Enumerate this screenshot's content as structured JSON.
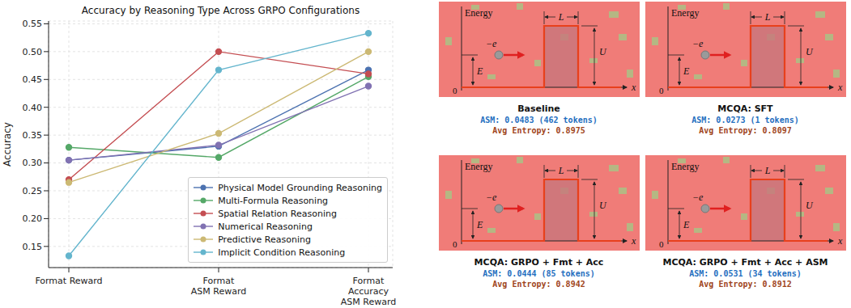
{
  "chart_data": {
    "type": "line",
    "title": "Accuracy by Reasoning Type Across GRPO Configurations",
    "y_label": "Accuracy",
    "categories": [
      "Format Reward",
      "Format\nASM Reward",
      "Format\nAccuracy\nASM Reward"
    ],
    "series": [
      {
        "name": "Physical Model Grounding Reasoning",
        "color": "#4c72b0",
        "values": [
          0.305,
          0.33,
          0.467
        ]
      },
      {
        "name": "Multi-Formula Reasoning",
        "color": "#55a868",
        "values": [
          0.328,
          0.31,
          0.455
        ]
      },
      {
        "name": "Spatial Relation Reasoning",
        "color": "#c44e52",
        "values": [
          0.27,
          0.5,
          0.46
        ]
      },
      {
        "name": "Numerical Reasoning",
        "color": "#8172b2",
        "values": [
          0.305,
          0.332,
          0.438
        ]
      },
      {
        "name": "Predictive Reasoning",
        "color": "#ccb974",
        "values": [
          0.265,
          0.353,
          0.5
        ]
      },
      {
        "name": "Implicit Condition Reasoning",
        "color": "#64b5cd",
        "values": [
          0.133,
          0.467,
          0.533
        ]
      }
    ],
    "ylim": [
      0.112,
      0.555
    ],
    "yticks": [
      0.15,
      {
        "value": 0.2,
        "label": "0.20"
      },
      0.25,
      {
        "value": 0.3,
        "label": "0.30"
      },
      0.35,
      {
        "value": 0.4,
        "label": "0.40"
      },
      0.45,
      {
        "value": 0.5,
        "label": "0.50"
      },
      0.55
    ],
    "grid": true,
    "legend": "lower right",
    "marker": "o"
  },
  "diagram": {
    "y_label": "Energy",
    "x_label": "x",
    "origin": "0",
    "energy": "E",
    "barrier_height": "U",
    "barrier_width": "L",
    "charge": "−e"
  },
  "panels": [
    {
      "title": "Baseline",
      "asm": "ASM: 0.0483 (462 tokens)",
      "entropy": "Avg Entropy: 0.8975"
    },
    {
      "title": "MCQA: SFT",
      "asm": "ASM: 0.0273 (1 tokens)",
      "entropy": "Avg Entropy: 0.8097"
    },
    {
      "title": "MCQA: GRPO + Fmt + Acc",
      "asm": "ASM: 0.0444 (85 tokens)",
      "entropy": "Avg Entropy: 0.8942"
    },
    {
      "title": "MCQA: GRPO + Fmt + Acc + ASM",
      "asm": "ASM: 0.0531 (34 tokens)",
      "entropy": "Avg Entropy: 0.8912"
    }
  ]
}
